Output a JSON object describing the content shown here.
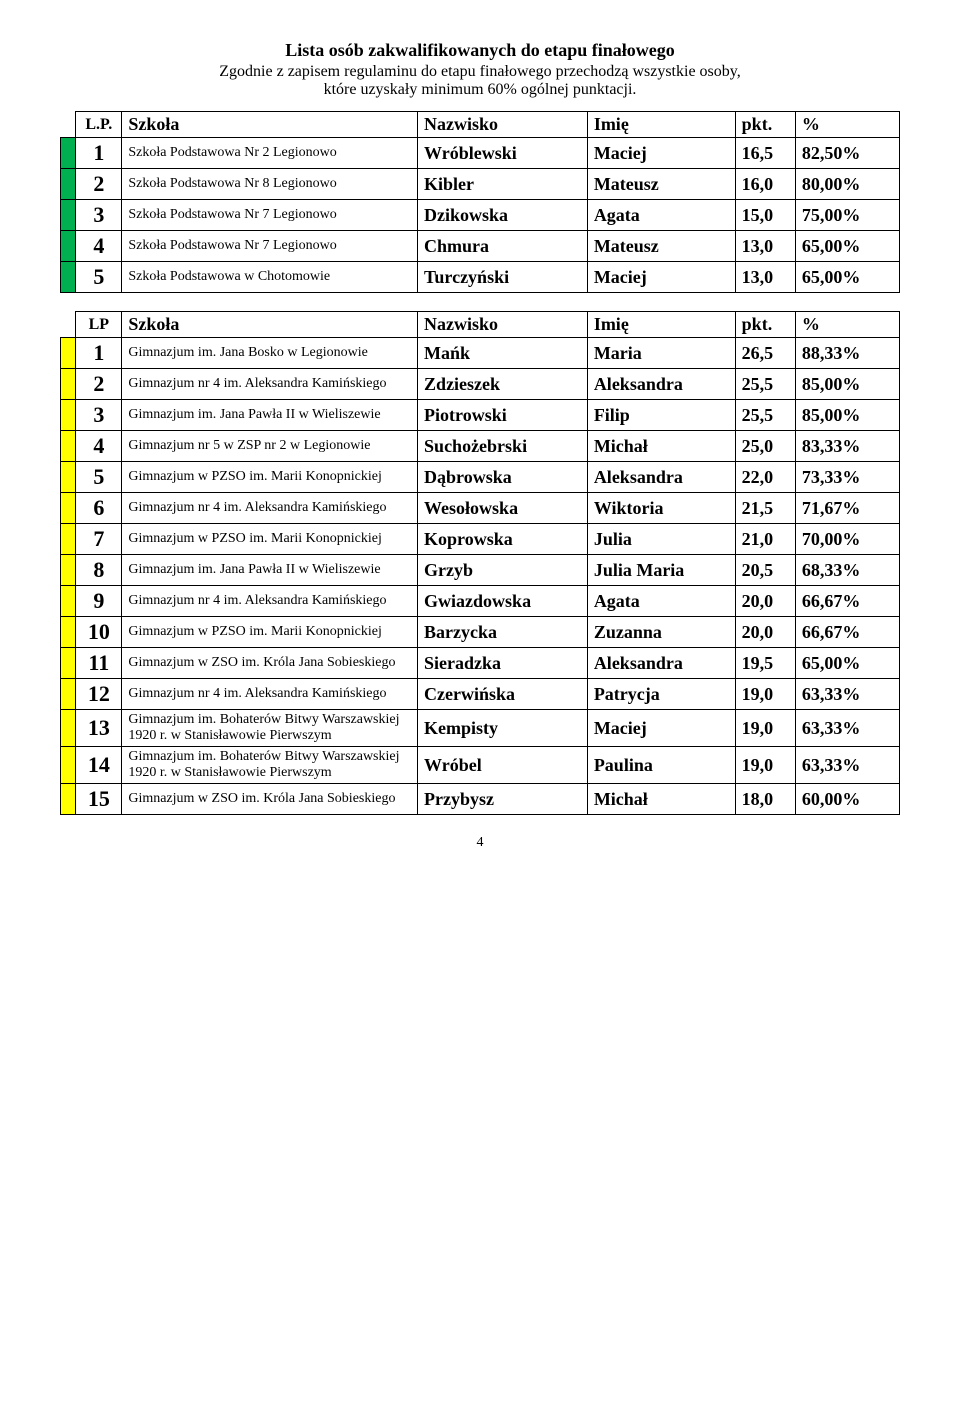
{
  "header": {
    "title": "Lista osób zakwalifikowanych do etapu finałowego",
    "subtitle1": "Zgodnie z zapisem regulaminu do etapu finałowego przechodzą wszystkie osoby,",
    "subtitle2": "które uzyskały minimum 60% ogólnej punktacji."
  },
  "columns": {
    "lp": "L.P.",
    "lp2": "LP",
    "school": "Szkoła",
    "surname": "Nazwisko",
    "name": "Imię",
    "pkt": "pkt.",
    "pct": "%"
  },
  "colors": {
    "green": "#00b050",
    "yellow": "#ffff00"
  },
  "table1": [
    {
      "rank": "1",
      "school": "Szkoła Podstawowa Nr 2 Legionowo",
      "surname": "Wróblewski",
      "name": "Maciej",
      "pkt": "16,5",
      "pct": "82,50%"
    },
    {
      "rank": "2",
      "school": "Szkoła Podstawowa Nr 8 Legionowo",
      "surname": "Kibler",
      "name": "Mateusz",
      "pkt": "16,0",
      "pct": "80,00%"
    },
    {
      "rank": "3",
      "school": "Szkoła Podstawowa Nr 7 Legionowo",
      "surname": "Dzikowska",
      "name": "Agata",
      "pkt": "15,0",
      "pct": "75,00%"
    },
    {
      "rank": "4",
      "school": "Szkoła Podstawowa Nr 7 Legionowo",
      "surname": "Chmura",
      "name": "Mateusz",
      "pkt": "13,0",
      "pct": "65,00%"
    },
    {
      "rank": "5",
      "school": "Szkoła Podstawowa w Chotomowie",
      "surname": "Turczyński",
      "name": "Maciej",
      "pkt": "13,0",
      "pct": "65,00%"
    }
  ],
  "table2": [
    {
      "rank": "1",
      "school": "Gimnazjum im. Jana Bosko w Legionowie",
      "surname": "Mańk",
      "name": "Maria",
      "pkt": "26,5",
      "pct": "88,33%"
    },
    {
      "rank": "2",
      "school": "Gimnazjum nr 4 im. Aleksandra Kamińskiego",
      "surname": "Zdzieszek",
      "name": "Aleksandra",
      "pkt": "25,5",
      "pct": "85,00%"
    },
    {
      "rank": "3",
      "school": "Gimnazjum im. Jana Pawła II w Wieliszewie",
      "surname": "Piotrowski",
      "name": "Filip",
      "pkt": "25,5",
      "pct": "85,00%"
    },
    {
      "rank": "4",
      "school": "Gimnazjum nr 5 w ZSP nr 2 w Legionowie",
      "surname": "Suchożebrski",
      "name": "Michał",
      "pkt": "25,0",
      "pct": "83,33%"
    },
    {
      "rank": "5",
      "school": "Gimnazjum w PZSO im. Marii Konopnickiej",
      "surname": "Dąbrowska",
      "name": "Aleksandra",
      "pkt": "22,0",
      "pct": "73,33%"
    },
    {
      "rank": "6",
      "school": "Gimnazjum nr 4 im. Aleksandra Kamińskiego",
      "surname": "Wesołowska",
      "name": "Wiktoria",
      "pkt": "21,5",
      "pct": "71,67%"
    },
    {
      "rank": "7",
      "school": "Gimnazjum w PZSO im. Marii Konopnickiej",
      "surname": "Koprowska",
      "name": "Julia",
      "pkt": "21,0",
      "pct": "70,00%"
    },
    {
      "rank": "8",
      "school": "Gimnazjum im. Jana Pawła II w Wieliszewie",
      "surname": "Grzyb",
      "name": "Julia Maria",
      "pkt": "20,5",
      "pct": "68,33%"
    },
    {
      "rank": "9",
      "school": "Gimnazjum nr 4 im. Aleksandra Kamińskiego",
      "surname": "Gwiazdowska",
      "name": "Agata",
      "pkt": "20,0",
      "pct": "66,67%"
    },
    {
      "rank": "10",
      "school": "Gimnazjum w PZSO im. Marii Konopnickiej",
      "surname": "Barzycka",
      "name": "Zuzanna",
      "pkt": "20,0",
      "pct": "66,67%"
    },
    {
      "rank": "11",
      "school": "Gimnazjum w ZSO im. Króla Jana Sobieskiego",
      "surname": "Sieradzka",
      "name": "Aleksandra",
      "pkt": "19,5",
      "pct": "65,00%"
    },
    {
      "rank": "12",
      "school": "Gimnazjum nr 4 im. Aleksandra Kamińskiego",
      "surname": "Czerwińska",
      "name": "Patrycja",
      "pkt": "19,0",
      "pct": "63,33%"
    },
    {
      "rank": "13",
      "school": "Gimnazjum im. Bohaterów Bitwy Warszawskiej 1920 r. w Stanisławowie Pierwszym",
      "surname": "Kempisty",
      "name": "Maciej",
      "pkt": "19,0",
      "pct": "63,33%"
    },
    {
      "rank": "14",
      "school": "Gimnazjum im. Bohaterów Bitwy Warszawskiej 1920 r. w Stanisławowie Pierwszym",
      "surname": "Wróbel",
      "name": "Paulina",
      "pkt": "19,0",
      "pct": "63,33%"
    },
    {
      "rank": "15",
      "school": "Gimnazjum w ZSO im. Króla Jana Sobieskiego",
      "surname": "Przybysz",
      "name": "Michał",
      "pkt": "18,0",
      "pct": "60,00%"
    }
  ],
  "page_number": "4"
}
